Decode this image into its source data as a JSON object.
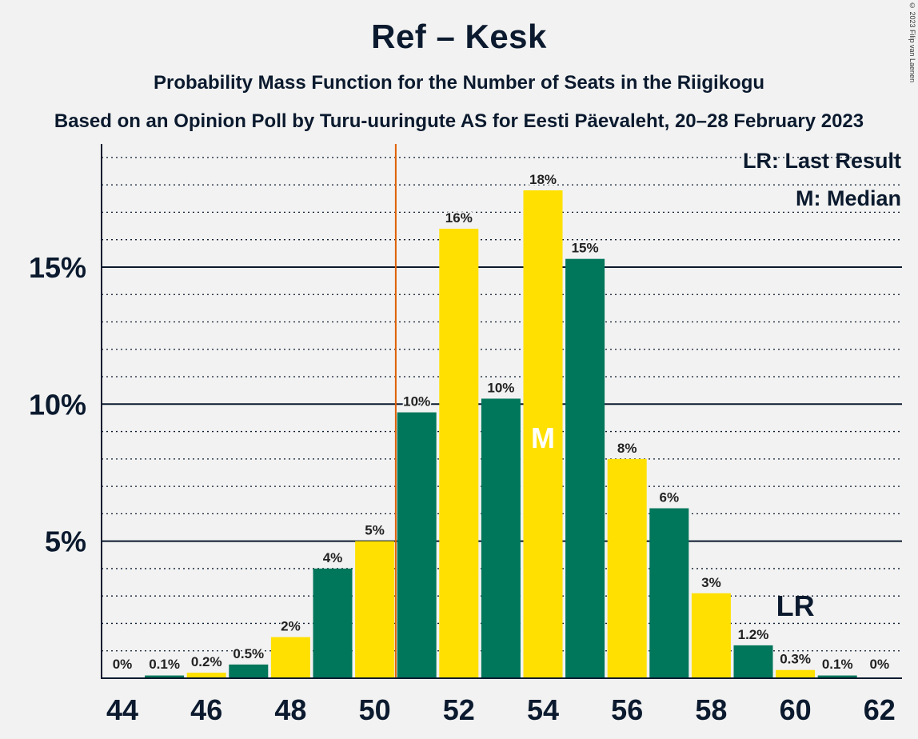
{
  "chart_data": {
    "type": "bar",
    "title": "Ref – Kesk",
    "subtitle": "Probability Mass Function for the Number of Seats in the Riigikogu",
    "subtitle2": "Based on an Opinion Poll by Turu-uuringute AS for Eesti Päevaleht, 20–28 February 2023",
    "copyright": "© 2023 Filip van Laenen",
    "categories": [
      44,
      45,
      46,
      47,
      48,
      49,
      50,
      51,
      52,
      53,
      54,
      55,
      56,
      57,
      58,
      59,
      60,
      61,
      62
    ],
    "values": [
      0,
      0.1,
      0.2,
      0.5,
      1.5,
      4.0,
      5.0,
      9.7,
      16.4,
      10.2,
      17.8,
      15.3,
      8.0,
      6.2,
      3.1,
      1.2,
      0.3,
      0.1,
      0
    ],
    "labels": [
      "0%",
      "0.1%",
      "0.2%",
      "0.5%",
      "2%",
      "4%",
      "5%",
      "10%",
      "16%",
      "10%",
      "18%",
      "15%",
      "8%",
      "6%",
      "3%",
      "1.2%",
      "0.3%",
      "0.1%",
      "0%"
    ],
    "x_tick_labels": [
      "44",
      "46",
      "48",
      "50",
      "52",
      "54",
      "56",
      "58",
      "60",
      "62"
    ],
    "y_tick_labels": [
      "5%",
      "10%",
      "15%"
    ],
    "y_ticks": [
      5,
      10,
      15
    ],
    "ylim": [
      0,
      19.5
    ],
    "colors": {
      "green": "#00765a",
      "yellow": "#ffe000",
      "threshold_line": "#e06000",
      "axis": "#0b1a2e"
    },
    "majority_threshold": 50.5,
    "median": {
      "seats": 54,
      "marker": "M"
    },
    "last_result": {
      "seats": 60,
      "marker": "LR"
    },
    "legend": [
      "LR: Last Result",
      "M: Median"
    ]
  }
}
